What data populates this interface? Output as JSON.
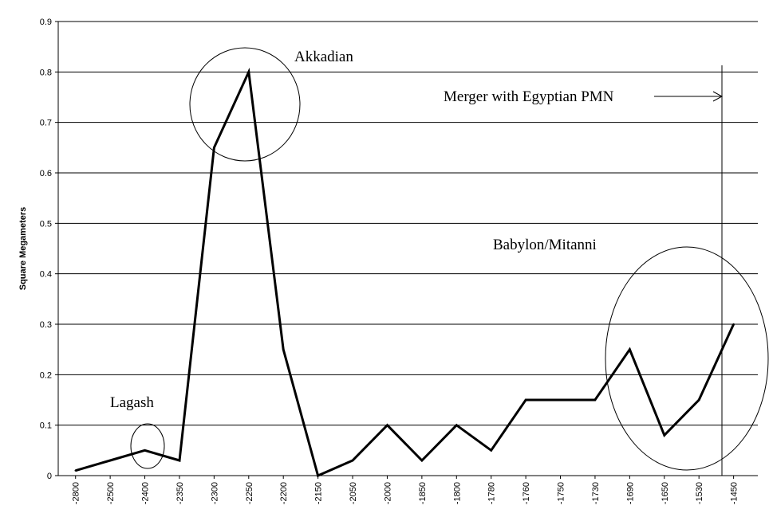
{
  "chart_data": {
    "type": "line",
    "title": "",
    "xlabel": "",
    "ylabel": "Square Megameters",
    "ylim": [
      0,
      0.9
    ],
    "yticks": [
      "0",
      "0.1",
      "0.2",
      "0.3",
      "0.4",
      "0.5",
      "0.6",
      "0.7",
      "0.8",
      "0.9"
    ],
    "grid": true,
    "legend": "none",
    "categories": [
      "-2800",
      "-2500",
      "-2400",
      "-2350",
      "-2300",
      "-2250",
      "-2200",
      "-2150",
      "-2050",
      "-2000",
      "-1850",
      "-1800",
      "-1780",
      "-1760",
      "-1750",
      "-1730",
      "-1690",
      "-1650",
      "-1530",
      "-1450"
    ],
    "series": [
      {
        "values": [
          0.01,
          0.03,
          0.05,
          0.03,
          0.65,
          0.8,
          0.25,
          0.0,
          0.03,
          0.1,
          0.03,
          0.1,
          0.05,
          0.15,
          0.15,
          0.15,
          0.25,
          0.08,
          0.15,
          0.3
        ]
      }
    ],
    "annotations": {
      "akkadian": "Akkadian",
      "lagash": "Lagash",
      "babylon": "Babylon/Mitanni",
      "merger": "Merger with Egyptian PMN"
    }
  }
}
